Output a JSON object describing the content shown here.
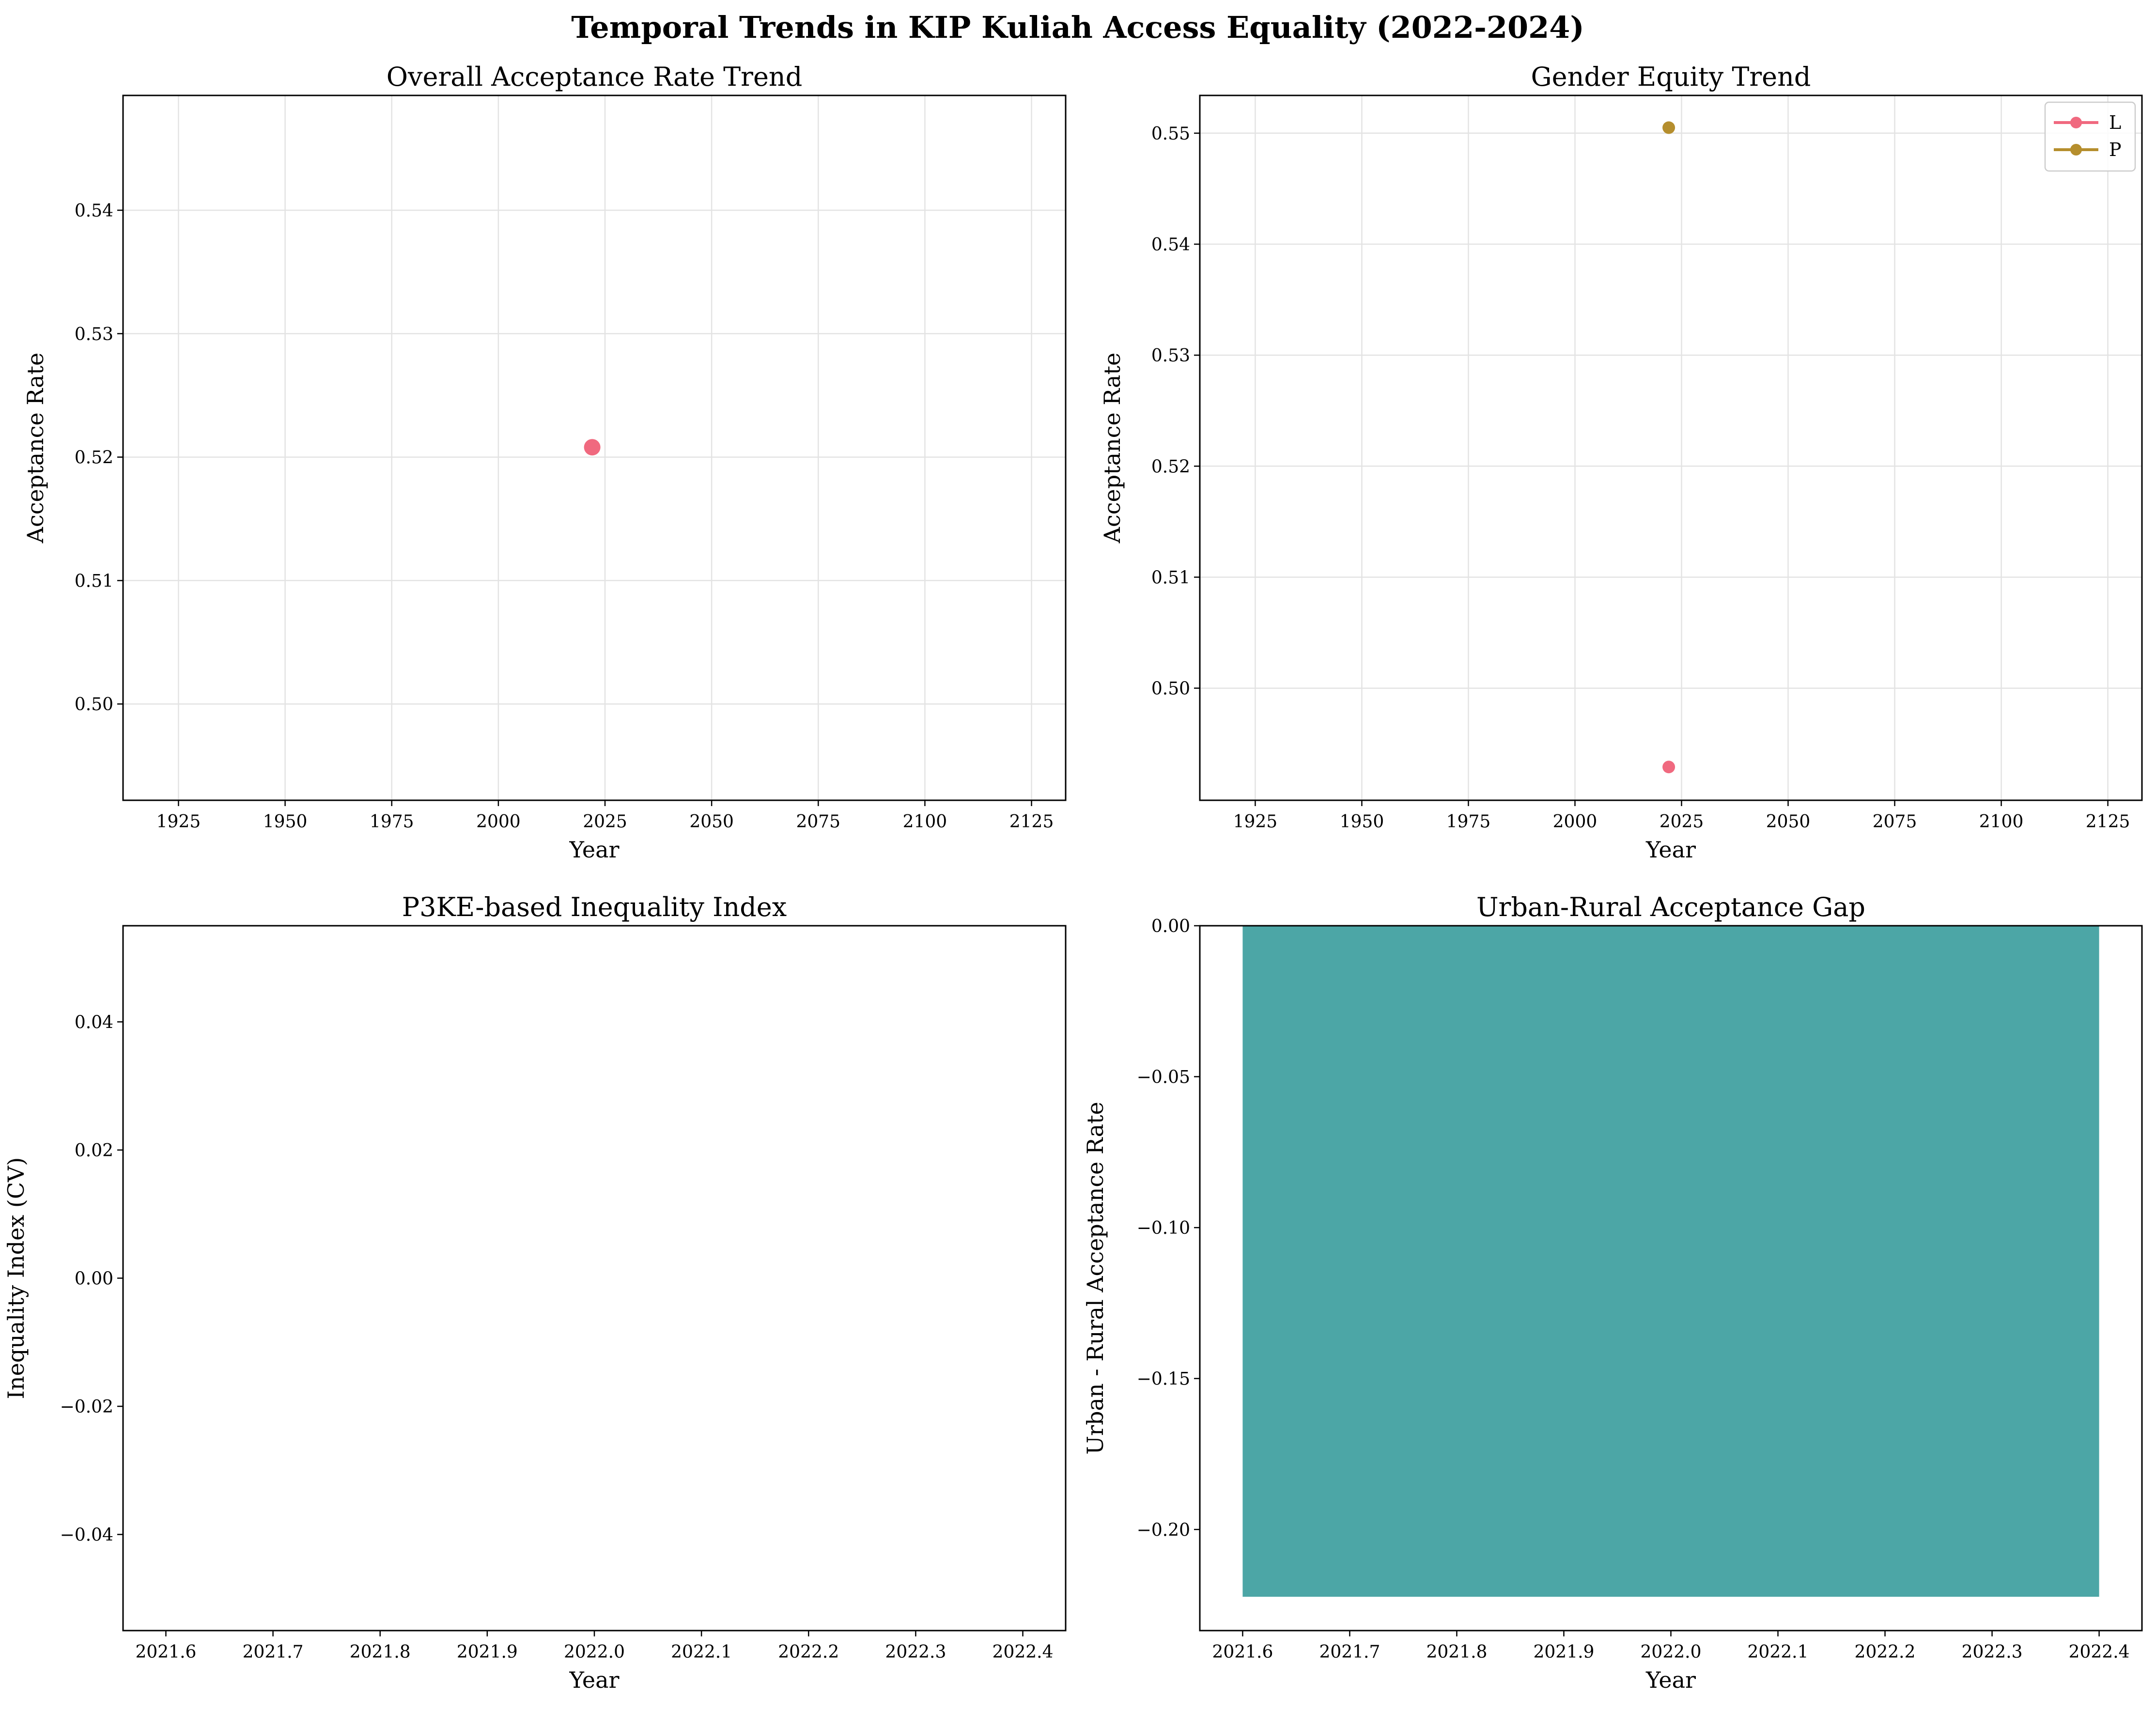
{
  "figure": {
    "title": "Temporal Trends in KIP Kuliah Access Equality (2022-2024)"
  },
  "chart_data": [
    {
      "id": "overall",
      "type": "scatter",
      "title": "Overall Acceptance Rate Trend",
      "xlabel": "Year",
      "ylabel": "Acceptance Rate",
      "grid": true,
      "xlim": [
        1912,
        2133
      ],
      "ylim": [
        0.4922,
        0.5493
      ],
      "xticks": [
        "1925",
        "1950",
        "1975",
        "2000",
        "2025",
        "2050",
        "2075",
        "2100",
        "2125"
      ],
      "yticks": [
        "0.50",
        "0.51",
        "0.52",
        "0.53",
        "0.54"
      ],
      "series": [
        {
          "color": "#f0697f",
          "points": [
            [
              2022,
              0.5208
            ]
          ]
        }
      ]
    },
    {
      "id": "gender",
      "type": "scatter",
      "title": "Gender Equity Trend",
      "xlabel": "Year",
      "ylabel": "Acceptance Rate",
      "grid": true,
      "legend": "top-right",
      "xlim": [
        1912,
        2133
      ],
      "ylim": [
        0.4899,
        0.5534
      ],
      "xticks": [
        "1925",
        "1950",
        "1975",
        "2000",
        "2025",
        "2050",
        "2075",
        "2100",
        "2125"
      ],
      "yticks": [
        "0.50",
        "0.51",
        "0.52",
        "0.53",
        "0.54",
        "0.55"
      ],
      "series": [
        {
          "name": "L",
          "color": "#f0697f",
          "points": [
            [
              2022,
              0.4929
            ]
          ]
        },
        {
          "name": "P",
          "color": "#b58e2d",
          "points": [
            [
              2022,
              0.5505
            ]
          ]
        }
      ]
    },
    {
      "id": "inequality",
      "type": "line",
      "title": "P3KE-based Inequality Index",
      "xlabel": "Year",
      "ylabel": "Inequality Index (CV)",
      "grid": false,
      "xlim": [
        2021.56,
        2022.44
      ],
      "ylim": [
        -0.055,
        0.055
      ],
      "xticks": [
        "2021.6",
        "2021.7",
        "2021.8",
        "2021.9",
        "2022.0",
        "2022.1",
        "2022.2",
        "2022.3",
        "2022.4"
      ],
      "yticks": [
        "−0.04",
        "−0.02",
        "0.00",
        "0.02",
        "0.04"
      ],
      "series": []
    },
    {
      "id": "urban_rural",
      "type": "bar",
      "title": "Urban-Rural Acceptance Gap",
      "xlabel": "Year",
      "ylabel": "Urban - Rural Acceptance Rate",
      "grid": false,
      "baseline": 0,
      "xlim": [
        2021.56,
        2022.44
      ],
      "ylim": [
        -0.2335,
        0.0
      ],
      "xticks": [
        "2021.6",
        "2021.7",
        "2021.8",
        "2021.9",
        "2022.0",
        "2022.1",
        "2022.2",
        "2022.3",
        "2022.4"
      ],
      "yticks": [
        "−0.20",
        "−0.15",
        "−0.10",
        "−0.05",
        "0.00"
      ],
      "bars": [
        {
          "x": 2022,
          "width": 0.8,
          "value": -0.2223,
          "color": "#4ca6a6"
        }
      ]
    }
  ]
}
